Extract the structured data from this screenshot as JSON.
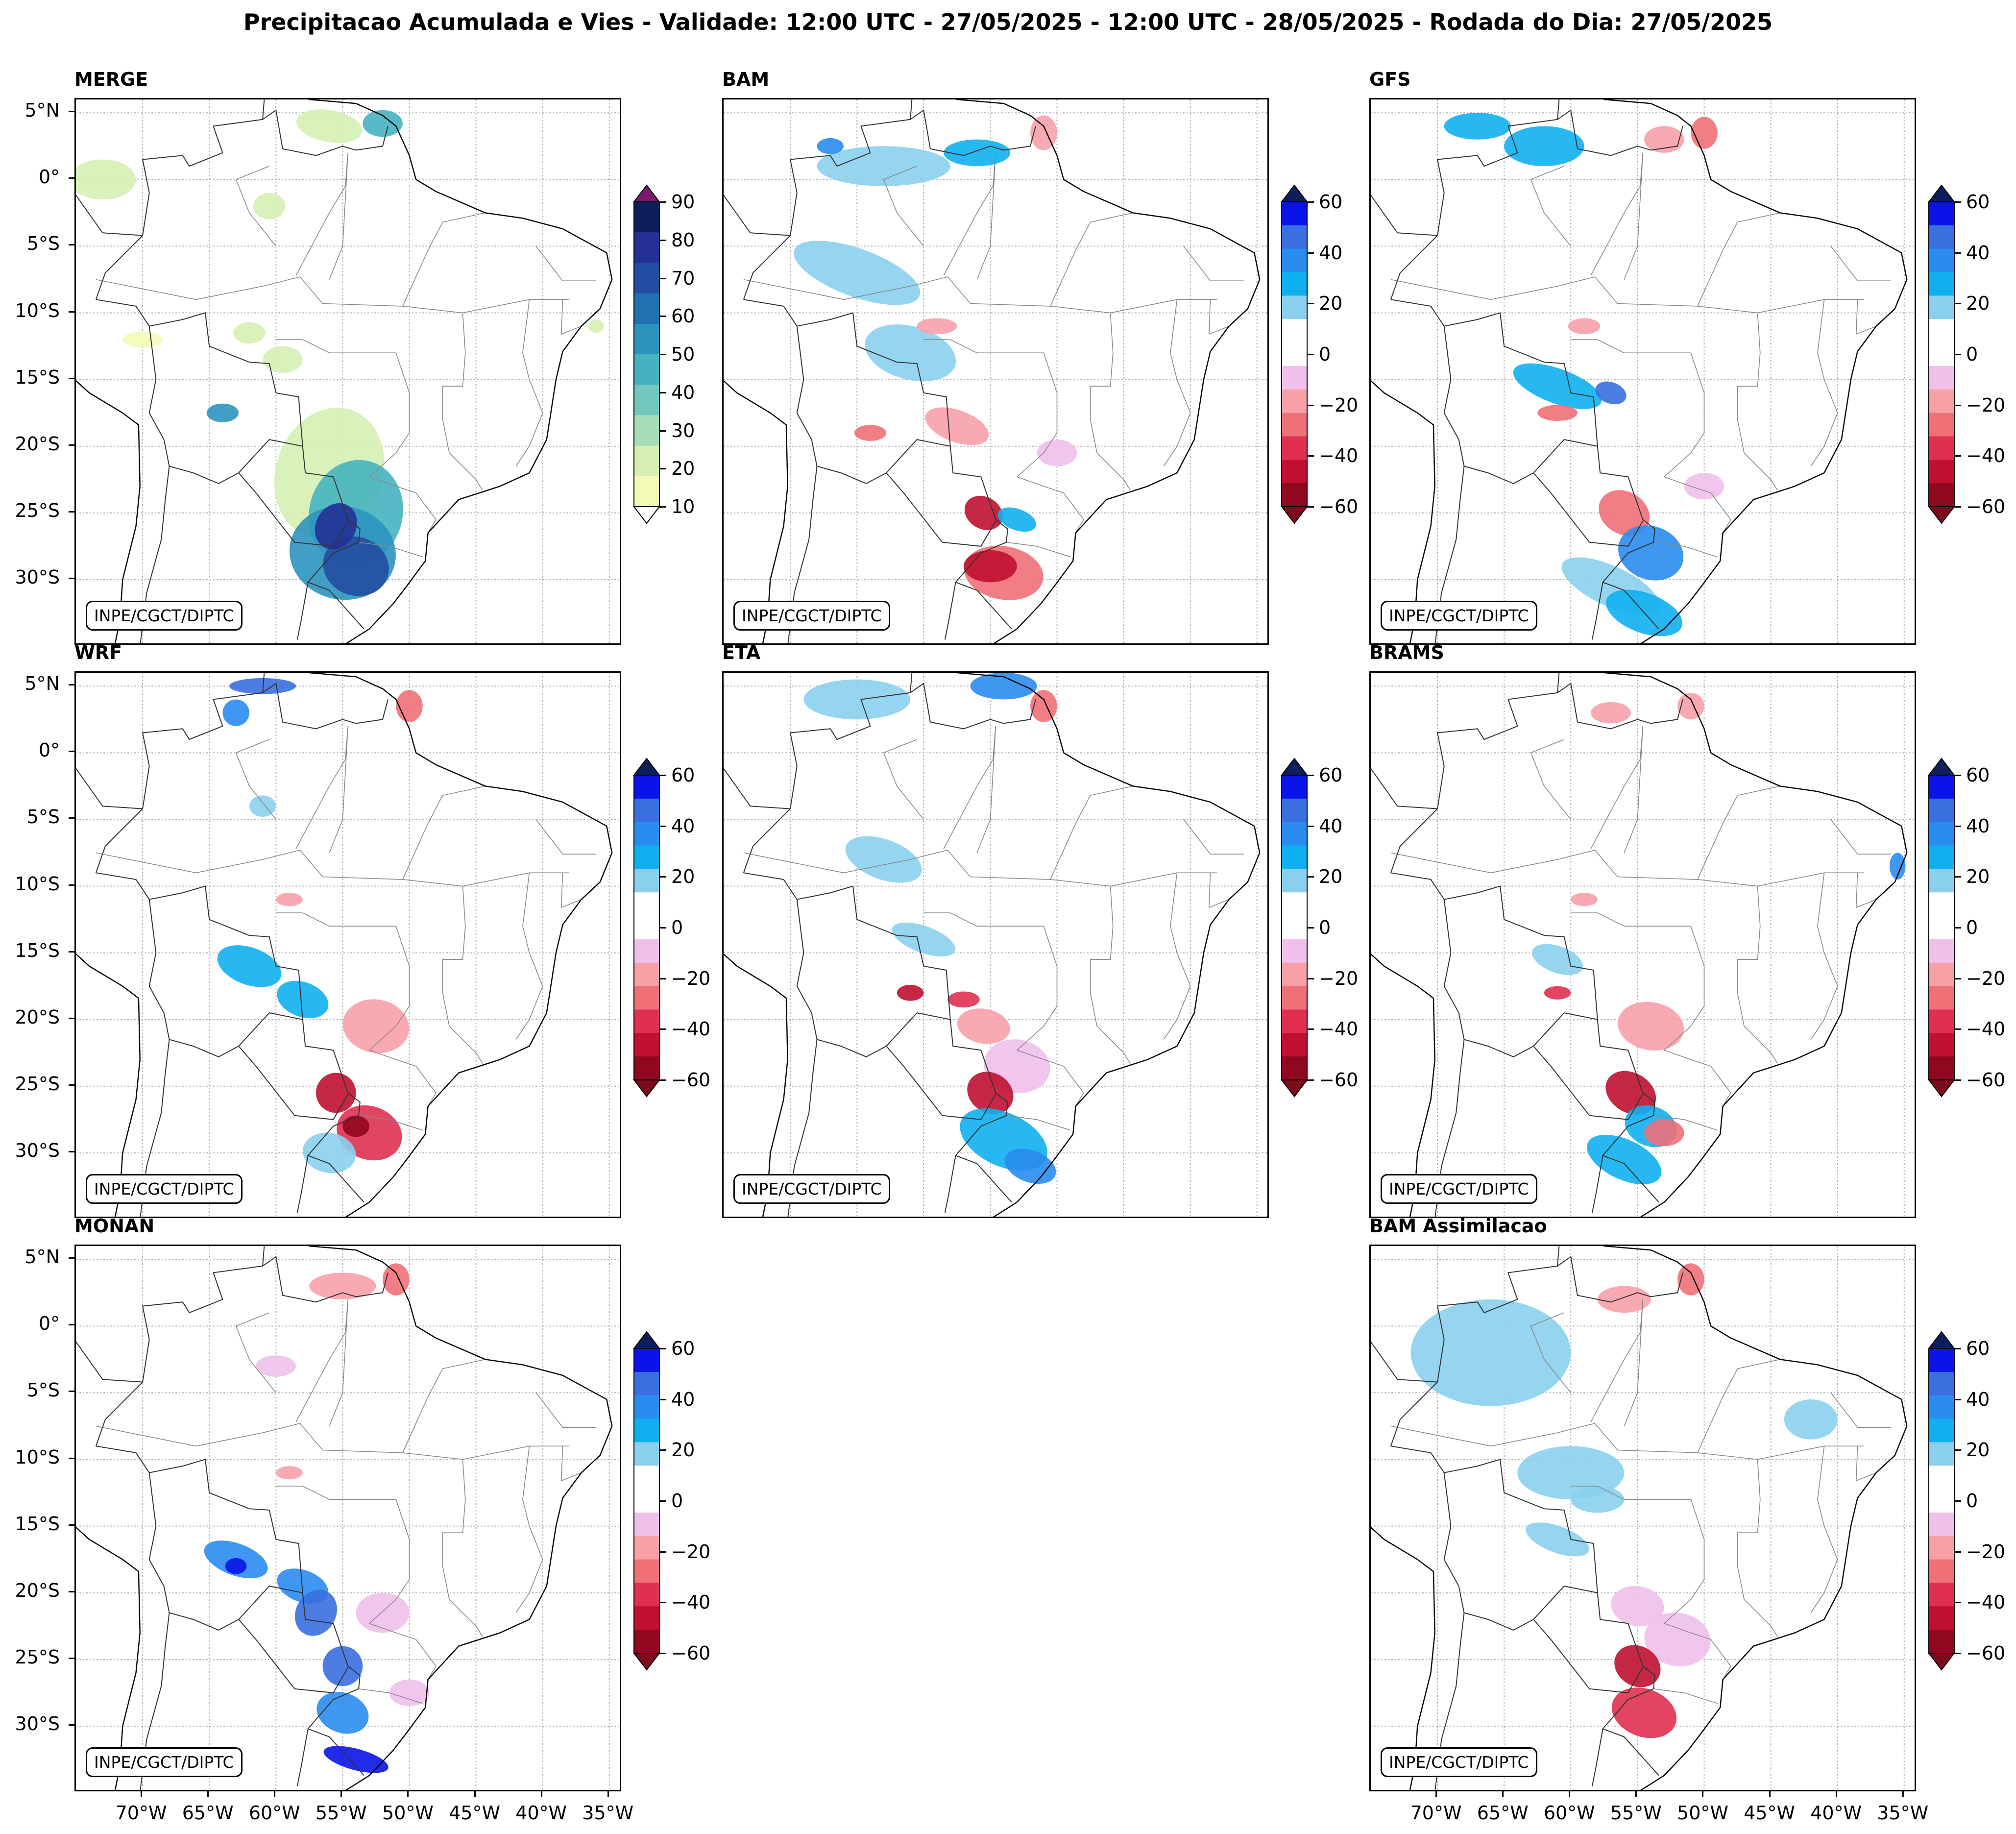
{
  "title": "Precipitacao Acumulada e Vies - Validade: 12:00 UTC - 27/05/2025 - 12:00 UTC - 28/05/2025 - Rodada do Dia: 27/05/2025",
  "credit": "INPE/CGCT/DIPTC",
  "lat_labels": [
    "5°N",
    "0°",
    "5°S",
    "10°S",
    "15°S",
    "20°S",
    "25°S",
    "30°S"
  ],
  "lon_labels": [
    "70°W",
    "65°W",
    "60°W",
    "55°W",
    "50°W",
    "45°W",
    "40°W",
    "35°W"
  ],
  "panels": [
    {
      "id": "merge",
      "title": "MERGE",
      "scale": "merge"
    },
    {
      "id": "bam",
      "title": "BAM",
      "scale": "bias"
    },
    {
      "id": "gfs",
      "title": "GFS",
      "scale": "bias"
    },
    {
      "id": "wrf",
      "title": "WRF",
      "scale": "bias"
    },
    {
      "id": "eta",
      "title": "ETA",
      "scale": "bias"
    },
    {
      "id": "brams",
      "title": "BRAMS",
      "scale": "bias"
    },
    {
      "id": "monan",
      "title": "MONAN",
      "scale": "bias"
    },
    {
      "id": "bam_assim",
      "title": "BAM Assimilacao",
      "scale": "bias"
    }
  ],
  "colorbars": {
    "merge": {
      "labels": [
        "90",
        "80",
        "70",
        "60",
        "50",
        "40",
        "30",
        "20",
        "10"
      ],
      "colors": [
        "#f4fab6",
        "#d5efb2",
        "#a8dcb6",
        "#73c8bd",
        "#46b2c1",
        "#2c93bf",
        "#2170b1",
        "#234da0",
        "#233195",
        "#0c1f5c"
      ],
      "over_color": "#7a1a6e",
      "under_color": "#ffffff"
    },
    "bias": {
      "labels": [
        "60",
        "40",
        "20",
        "0",
        "−20",
        "−40",
        "−60"
      ],
      "colors_top_to_bottom": [
        "#0a14e8",
        "#3a6fe0",
        "#2a8cf0",
        "#10b0f0",
        "#8ad0ee",
        "#ffffff",
        "#ffffff",
        "#f0c0ea",
        "#f8a0a8",
        "#f07078",
        "#e03050",
        "#c01030",
        "#900820"
      ],
      "over_color": "#0c1f5c",
      "under_color": "#7a0c1c"
    }
  }
}
